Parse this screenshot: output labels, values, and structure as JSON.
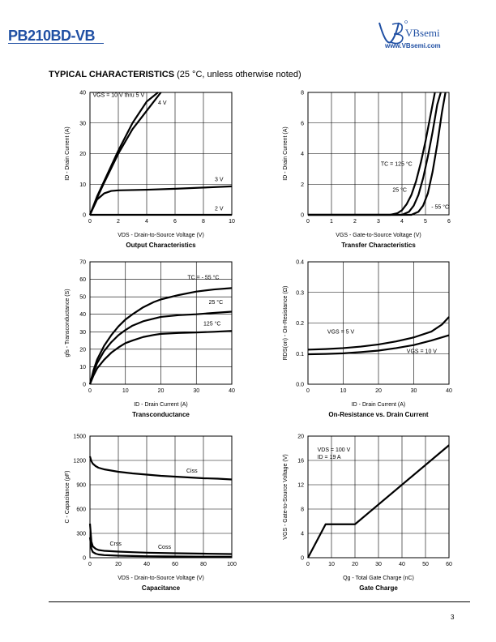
{
  "header": {
    "part_number": "PB210BD-VB",
    "logo_text": "VBsemi",
    "website": "www.VBsemi.com"
  },
  "section": {
    "title_bold": "TYPICAL CHARACTERISTICS",
    "title_rest": "(25 °C, unless otherwise noted)"
  },
  "page_number": "3",
  "colors": {
    "brand": "#1f4fa3",
    "ink": "#000000"
  },
  "chart_data": [
    {
      "id": "output",
      "type": "line",
      "title": "Output Characteristics",
      "xlabel": "VDS - Drain-to-Source Voltage (V)",
      "ylabel": "ID - Drain Current (A)",
      "xlim": [
        0,
        10
      ],
      "ylim": [
        0,
        40
      ],
      "xticks": [
        0,
        2,
        4,
        6,
        8,
        10
      ],
      "yticks": [
        0,
        10,
        20,
        30,
        40
      ],
      "grid": true,
      "series": [
        {
          "name": "VGS = 10 V thru 5 V",
          "x": [
            0,
            0.5,
            1,
            2,
            3,
            4,
            4.8
          ],
          "y": [
            0,
            6,
            11,
            21,
            30,
            37,
            40
          ]
        },
        {
          "name": "4 V",
          "x": [
            0,
            0.5,
            1,
            2,
            3,
            4,
            5
          ],
          "y": [
            0,
            5.5,
            10.5,
            20,
            28,
            34,
            40
          ]
        },
        {
          "name": "3 V",
          "x": [
            0,
            0.5,
            1,
            1.5,
            2,
            3,
            4,
            6,
            8,
            10
          ],
          "y": [
            0,
            5,
            7,
            7.8,
            8,
            8.1,
            8.2,
            8.5,
            8.9,
            9.3
          ]
        },
        {
          "name": "2 V",
          "x": [
            0,
            10
          ],
          "y": [
            0,
            0
          ]
        }
      ],
      "labels": [
        {
          "text": "VGS = 10 V thru 5 V",
          "x": 0.2,
          "y": 38.5
        },
        {
          "text": "4 V",
          "x": 4.8,
          "y": 36
        },
        {
          "text": "3 V",
          "x": 8.8,
          "y": 11
        },
        {
          "text": "2 V",
          "x": 8.8,
          "y": 1.5
        }
      ]
    },
    {
      "id": "transfer",
      "type": "line",
      "title": "Transfer Characteristics",
      "xlabel": "VGS - Gate-to-Source Voltage (V)",
      "ylabel": "ID - Drain Current (A)",
      "xlim": [
        0,
        6
      ],
      "ylim": [
        0,
        8
      ],
      "xticks": [
        0,
        1,
        2,
        3,
        4,
        5,
        6
      ],
      "yticks": [
        0,
        2,
        4,
        6,
        8
      ],
      "grid": true,
      "series": [
        {
          "name": "TC = 125 °C",
          "x": [
            0,
            3.5,
            3.8,
            4.0,
            4.2,
            4.4,
            4.6,
            4.8,
            5.0,
            5.2,
            5.4
          ],
          "y": [
            0,
            0,
            0.1,
            0.3,
            0.7,
            1.3,
            2.2,
            3.4,
            4.8,
            6.4,
            8
          ]
        },
        {
          "name": "25 °C",
          "x": [
            0,
            4.0,
            4.3,
            4.5,
            4.7,
            4.9,
            5.1,
            5.3,
            5.5,
            5.65
          ],
          "y": [
            0,
            0,
            0.2,
            0.6,
            1.3,
            2.4,
            3.8,
            5.4,
            7.2,
            8
          ]
        },
        {
          "name": "- 55 °C",
          "x": [
            0,
            4.4,
            4.7,
            4.9,
            5.1,
            5.3,
            5.5,
            5.7,
            5.85
          ],
          "y": [
            0,
            0,
            0.2,
            0.6,
            1.4,
            2.8,
            4.6,
            6.7,
            8
          ]
        }
      ],
      "labels": [
        {
          "text": "TC = 125 °C",
          "x": 3.1,
          "y": 3.2
        },
        {
          "text": "25 °C",
          "x": 3.6,
          "y": 1.5
        },
        {
          "text": "- 55 °C",
          "x": 5.25,
          "y": 0.4
        }
      ]
    },
    {
      "id": "transconductance",
      "type": "line",
      "title": "Transconductance",
      "xlabel": "ID - Drain Current (A)",
      "ylabel": "gfs - Transconductance (S)",
      "xlim": [
        0,
        40
      ],
      "ylim": [
        0,
        70
      ],
      "xticks": [
        0,
        10,
        20,
        30,
        40
      ],
      "yticks": [
        0,
        10,
        20,
        30,
        40,
        50,
        60,
        70
      ],
      "grid": true,
      "series": [
        {
          "name": "TC = - 55 °C",
          "x": [
            0,
            1,
            2,
            4,
            6,
            8,
            10,
            12,
            15,
            18,
            20,
            25,
            30,
            35,
            40
          ],
          "y": [
            0,
            8,
            14,
            22,
            28,
            33,
            37,
            40,
            44,
            47,
            48.5,
            51,
            53,
            54.2,
            55
          ]
        },
        {
          "name": "25 °C",
          "x": [
            0,
            1,
            2,
            4,
            6,
            8,
            10,
            12,
            15,
            18,
            20,
            25,
            30,
            35,
            40
          ],
          "y": [
            0,
            7,
            12,
            19,
            24,
            28,
            31,
            33.5,
            36,
            37.5,
            38.5,
            39.5,
            40,
            40.8,
            41.5
          ]
        },
        {
          "name": "125 °C",
          "x": [
            0,
            1,
            2,
            4,
            6,
            8,
            10,
            12,
            15,
            18,
            20,
            25,
            30,
            35,
            40
          ],
          "y": [
            0,
            5,
            9,
            14,
            18,
            21,
            23.5,
            25,
            27,
            28.2,
            28.8,
            29.3,
            29.6,
            30,
            30.5
          ]
        }
      ],
      "labels": [
        {
          "text": "TC = - 55 °C",
          "x": 27.5,
          "y": 60
        },
        {
          "text": "25 °C",
          "x": 33.5,
          "y": 46
        },
        {
          "text": "125 °C",
          "x": 32,
          "y": 33.5
        }
      ]
    },
    {
      "id": "on_resistance",
      "type": "line",
      "title": "On-Resistance vs. Drain Current",
      "xlabel": "ID - Drain Current (A)",
      "ylabel": "RDS(on) - On-Resistance (Ω)",
      "xlim": [
        0,
        40
      ],
      "ylim": [
        0,
        0.4
      ],
      "xticks": [
        0,
        10,
        20,
        30,
        40
      ],
      "yticks": [
        "0.0",
        "0.1",
        "0.2",
        "0.3",
        "0.4"
      ],
      "grid": true,
      "series": [
        {
          "name": "VGS = 5 V",
          "x": [
            0,
            5,
            10,
            15,
            20,
            25,
            30,
            35,
            38,
            40
          ],
          "y": [
            0.113,
            0.115,
            0.118,
            0.123,
            0.13,
            0.14,
            0.153,
            0.172,
            0.195,
            0.22
          ]
        },
        {
          "name": "VGS = 10 V",
          "x": [
            0,
            5,
            10,
            15,
            20,
            25,
            30,
            35,
            40
          ],
          "y": [
            0.098,
            0.099,
            0.101,
            0.105,
            0.11,
            0.118,
            0.128,
            0.143,
            0.16
          ]
        }
      ],
      "labels": [
        {
          "text": "VGS = 5 V",
          "x": 5.5,
          "y": 0.165
        },
        {
          "text": "VGS = 10 V",
          "x": 28,
          "y": 0.102
        }
      ]
    },
    {
      "id": "capacitance",
      "type": "line",
      "title": "Capacitance",
      "xlabel": "VDS - Drain-to-Source Voltage (V)",
      "ylabel": "C - Capacitance (pF)",
      "xlim": [
        0,
        100
      ],
      "ylim": [
        0,
        1500
      ],
      "xticks": [
        0,
        20,
        40,
        60,
        80,
        100
      ],
      "yticks": [
        0,
        300,
        600,
        900,
        1200,
        1500
      ],
      "grid": true,
      "series": [
        {
          "name": "Ciss",
          "x": [
            0,
            1,
            2,
            4,
            6,
            10,
            20,
            30,
            40,
            50,
            60,
            70,
            80,
            90,
            100
          ],
          "y": [
            1250,
            1190,
            1160,
            1130,
            1110,
            1090,
            1060,
            1040,
            1025,
            1010,
            1000,
            990,
            980,
            975,
            965
          ]
        },
        {
          "name": "Coss",
          "x": [
            0,
            1,
            2,
            4,
            6,
            10,
            20,
            30,
            40,
            60,
            80,
            100
          ],
          "y": [
            420,
            200,
            140,
            110,
            95,
            85,
            75,
            68,
            62,
            55,
            50,
            45
          ]
        },
        {
          "name": "Crss",
          "x": [
            0,
            1,
            2,
            4,
            6,
            10,
            20,
            30,
            40,
            60,
            80,
            100
          ],
          "y": [
            250,
            110,
            70,
            50,
            40,
            32,
            25,
            21,
            18,
            15,
            13,
            11
          ]
        }
      ],
      "labels": [
        {
          "text": "Ciss",
          "x": 68,
          "y": 1050
        },
        {
          "text": "Crss",
          "x": 14,
          "y": 150
        },
        {
          "text": "Coss",
          "x": 48,
          "y": 110
        }
      ]
    },
    {
      "id": "gate_charge",
      "type": "line",
      "title": "Gate Charge",
      "xlabel": "Qg - Total Gate Charge (nC)",
      "ylabel": "VGS - Gate-to-Source Voltage (V)",
      "xlim": [
        0,
        60
      ],
      "ylim": [
        0,
        20
      ],
      "xticks": [
        0,
        10,
        20,
        30,
        40,
        50,
        60
      ],
      "yticks": [
        0,
        4,
        8,
        12,
        16,
        20
      ],
      "grid": true,
      "series": [
        {
          "name": "VDS = 100 V, ID = 19 A",
          "x": [
            0,
            7.5,
            20,
            60
          ],
          "y": [
            0,
            5.5,
            5.5,
            18.5
          ]
        }
      ],
      "labels": [
        {
          "text": "VDS = 100 V",
          "x": 4,
          "y": 17.5
        },
        {
          "text": "ID = 19 A",
          "x": 4,
          "y": 16.3
        }
      ]
    }
  ]
}
